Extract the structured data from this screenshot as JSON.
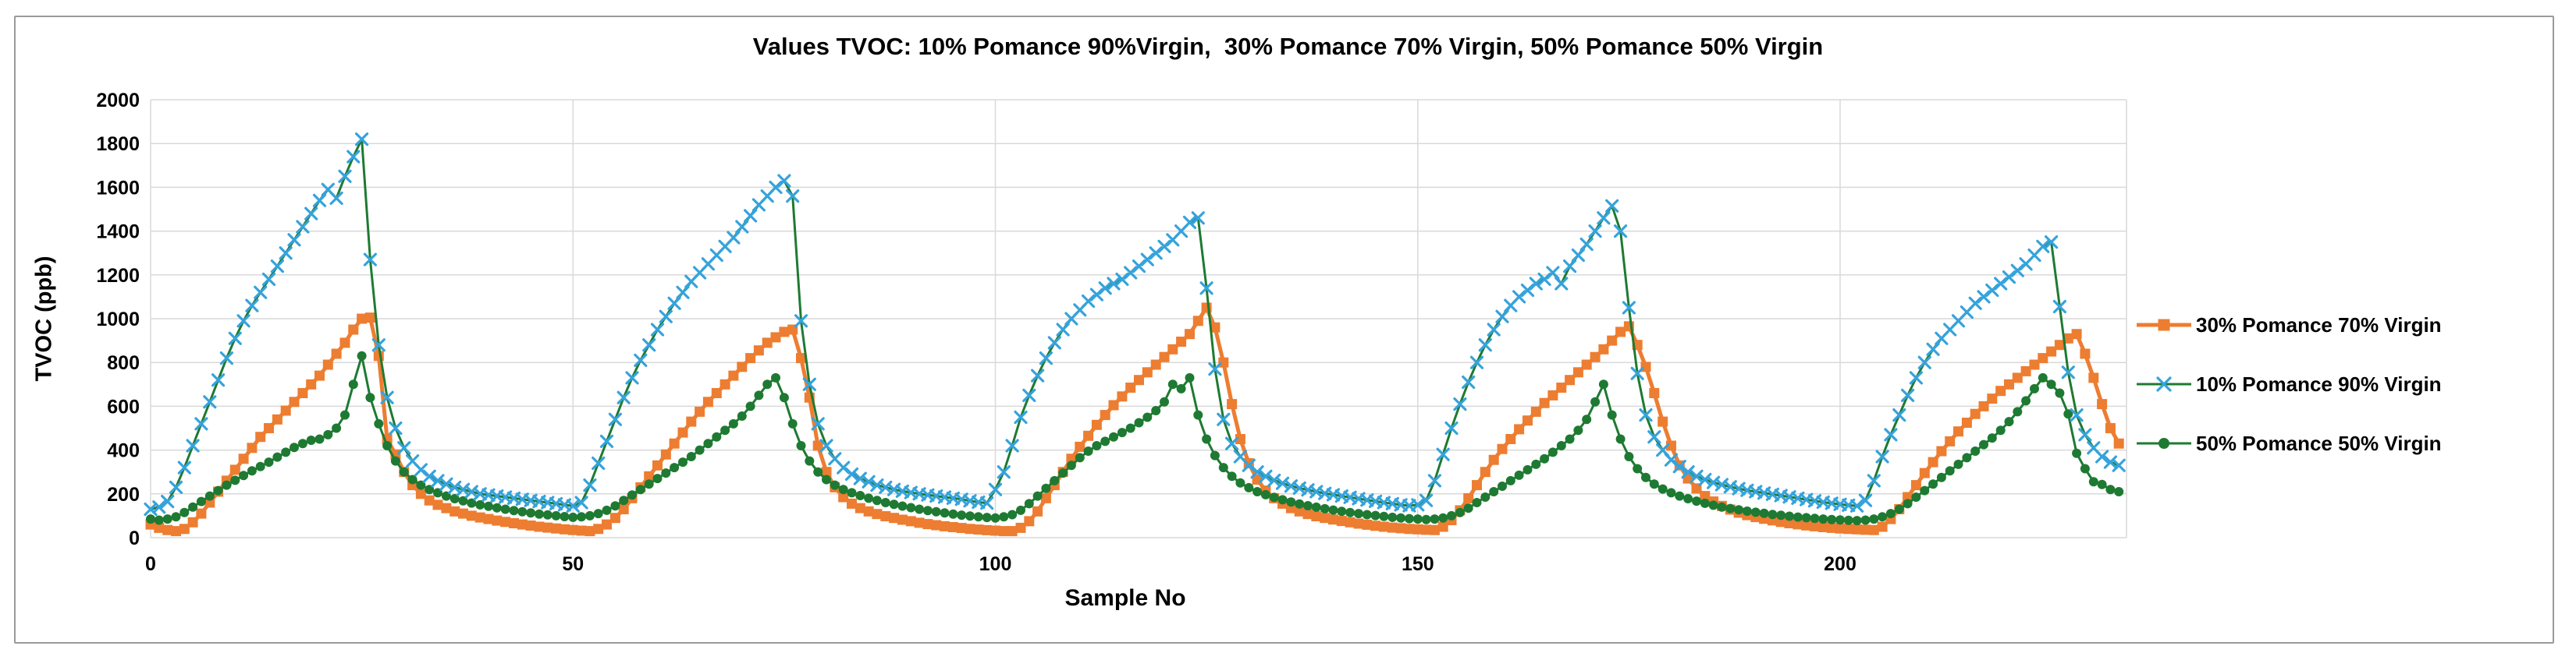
{
  "title": "Values TVOC: 10% Pomance 90%Virgin,  30% Pomance 70% Virgin, 50% Pomance 50% Virgin",
  "y_axis": {
    "label": "TVOC (ppb)"
  },
  "x_axis": {
    "label": "Sample No"
  },
  "colors": {
    "gridline": "#D9D9D9",
    "frame_border": "#9A9A9A",
    "text": "#000000",
    "orange_series": "#ED7D31",
    "dark_green_line": "#1E7A32",
    "light_blue_marker": "#35A3DC"
  },
  "legend": {
    "position": "right"
  },
  "chart_data": {
    "type": "line",
    "title": "Values TVOC: 10% Pomance 90%Virgin,  30% Pomance 70% Virgin, 50% Pomance 50% Virgin",
    "xlabel": "Sample No",
    "ylabel": "TVOC (ppb)",
    "xlim": [
      0,
      234
    ],
    "ylim": [
      0,
      2000
    ],
    "x_ticks": [
      0,
      50,
      100,
      150,
      200
    ],
    "y_ticks": [
      0,
      200,
      400,
      600,
      800,
      1000,
      1200,
      1400,
      1600,
      1800,
      2000
    ],
    "grid": true,
    "legend_position": "right",
    "x_is_sample_index": true,
    "sample_start": 0,
    "sample_step": 1,
    "series": [
      {
        "name": "30% Pomance 70% Virgin",
        "marker": "square",
        "marker_color": "#ED7D31",
        "line_color": "#ED7D31",
        "line_width": 5,
        "marker_size": 13,
        "z": 0,
        "values": [
          60,
          45,
          35,
          30,
          40,
          70,
          110,
          160,
          210,
          260,
          310,
          360,
          410,
          460,
          500,
          540,
          580,
          620,
          660,
          700,
          740,
          790,
          840,
          890,
          950,
          1000,
          1005,
          830,
          450,
          380,
          300,
          240,
          200,
          170,
          150,
          135,
          120,
          110,
          100,
          92,
          85,
          78,
          72,
          66,
          60,
          55,
          50,
          46,
          42,
          38,
          35,
          32,
          30,
          40,
          60,
          90,
          130,
          180,
          230,
          280,
          330,
          380,
          430,
          480,
          530,
          575,
          620,
          660,
          700,
          740,
          780,
          820,
          855,
          890,
          915,
          940,
          950,
          820,
          640,
          420,
          300,
          230,
          185,
          155,
          135,
          120,
          108,
          98,
          90,
          82,
          75,
          68,
          62,
          57,
          52,
          48,
          44,
          40,
          37,
          34,
          32,
          30,
          30,
          45,
          75,
          120,
          180,
          240,
          300,
          360,
          415,
          465,
          515,
          560,
          605,
          645,
          685,
          720,
          755,
          790,
          825,
          860,
          895,
          930,
          990,
          1050,
          960,
          800,
          610,
          450,
          340,
          265,
          215,
          180,
          155,
          135,
          120,
          108,
          98,
          90,
          83,
          76,
          70,
          64,
          59,
          54,
          50,
          46,
          43,
          40,
          38,
          36,
          35,
          50,
          80,
          125,
          180,
          240,
          300,
          355,
          405,
          450,
          495,
          535,
          575,
          615,
          650,
          685,
          720,
          755,
          790,
          825,
          860,
          900,
          940,
          965,
          880,
          780,
          660,
          530,
          420,
          330,
          270,
          225,
          190,
          165,
          145,
          128,
          114,
          103,
          94,
          86,
          79,
          72,
          66,
          61,
          56,
          52,
          48,
          45,
          42,
          40,
          38,
          36,
          35,
          50,
          85,
          130,
          185,
          240,
          295,
          345,
          395,
          440,
          485,
          525,
          565,
          600,
          635,
          670,
          700,
          730,
          760,
          790,
          820,
          850,
          880,
          910,
          930,
          840,
          730,
          610,
          500,
          430
        ]
      },
      {
        "name": "10% Pomance 90% Virgin",
        "marker": "x",
        "marker_color": "#35A3DC",
        "line_color": "#1E7A32",
        "line_width": 3,
        "marker_size": 14,
        "z": 2,
        "values": [
          130,
          140,
          165,
          230,
          320,
          420,
          520,
          620,
          720,
          820,
          910,
          990,
          1060,
          1120,
          1180,
          1240,
          1300,
          1360,
          1420,
          1480,
          1540,
          1590,
          1550,
          1650,
          1740,
          1820,
          1270,
          880,
          640,
          500,
          410,
          350,
          310,
          280,
          260,
          245,
          230,
          220,
          210,
          200,
          195,
          190,
          185,
          180,
          175,
          170,
          165,
          160,
          155,
          150,
          145,
          160,
          240,
          340,
          440,
          540,
          640,
          730,
          810,
          880,
          950,
          1010,
          1070,
          1120,
          1170,
          1210,
          1250,
          1290,
          1330,
          1370,
          1420,
          1470,
          1520,
          1560,
          1600,
          1630,
          1560,
          990,
          700,
          520,
          420,
          360,
          320,
          290,
          270,
          255,
          240,
          230,
          220,
          212,
          206,
          200,
          195,
          190,
          185,
          180,
          175,
          168,
          162,
          158,
          220,
          300,
          420,
          550,
          650,
          740,
          820,
          890,
          950,
          1000,
          1040,
          1080,
          1110,
          1140,
          1160,
          1180,
          1210,
          1240,
          1270,
          1300,
          1330,
          1360,
          1400,
          1440,
          1460,
          1140,
          770,
          540,
          430,
          370,
          330,
          300,
          280,
          262,
          248,
          236,
          226,
          218,
          210,
          202,
          196,
          190,
          184,
          178,
          172,
          166,
          160,
          155,
          150,
          146,
          150,
          170,
          260,
          380,
          500,
          610,
          710,
          800,
          880,
          950,
          1010,
          1060,
          1100,
          1130,
          1160,
          1180,
          1210,
          1160,
          1240,
          1290,
          1340,
          1400,
          1460,
          1515,
          1400,
          1050,
          750,
          560,
          460,
          400,
          355,
          325,
          300,
          280,
          265,
          252,
          242,
          232,
          224,
          216,
          210,
          204,
          198,
          192,
          186,
          180,
          174,
          168,
          162,
          157,
          152,
          148,
          145,
          170,
          260,
          370,
          470,
          560,
          650,
          730,
          800,
          860,
          910,
          950,
          990,
          1030,
          1070,
          1100,
          1130,
          1160,
          1190,
          1220,
          1250,
          1290,
          1330,
          1350,
          1055,
          755,
          560,
          470,
          410,
          370,
          345,
          330
        ]
      },
      {
        "name": "50% Pomance 50% Virgin",
        "marker": "circle",
        "marker_color": "#1E7A32",
        "line_color": "#1E7A32",
        "line_width": 3,
        "marker_size": 12,
        "z": 1,
        "values": [
          85,
          80,
          85,
          95,
          115,
          140,
          165,
          190,
          215,
          240,
          262,
          284,
          305,
          325,
          345,
          368,
          390,
          412,
          430,
          445,
          450,
          470,
          500,
          560,
          700,
          830,
          640,
          520,
          420,
          350,
          300,
          265,
          240,
          220,
          205,
          190,
          178,
          168,
          158,
          150,
          143,
          136,
          130,
          124,
          118,
          113,
          108,
          104,
          100,
          96,
          93,
          95,
          100,
          110,
          125,
          145,
          170,
          195,
          220,
          245,
          270,
          295,
          320,
          345,
          370,
          400,
          430,
          460,
          490,
          520,
          555,
          600,
          650,
          700,
          730,
          640,
          520,
          420,
          350,
          300,
          265,
          240,
          220,
          205,
          192,
          180,
          170,
          160,
          152,
          144,
          137,
          130,
          124,
          118,
          113,
          108,
          103,
          99,
          95,
          92,
          90,
          95,
          105,
          125,
          155,
          190,
          225,
          260,
          295,
          330,
          365,
          395,
          420,
          440,
          460,
          480,
          500,
          525,
          550,
          580,
          620,
          700,
          680,
          730,
          560,
          450,
          375,
          320,
          280,
          250,
          228,
          210,
          196,
          184,
          173,
          163,
          154,
          146,
          139,
          132,
          126,
          120,
          115,
          110,
          105,
          101,
          97,
          93,
          90,
          87,
          85,
          83,
          85,
          90,
          100,
          115,
          135,
          160,
          185,
          210,
          235,
          260,
          285,
          310,
          335,
          360,
          390,
          420,
          450,
          490,
          540,
          620,
          700,
          560,
          450,
          370,
          315,
          275,
          245,
          222,
          205,
          190,
          178,
          167,
          157,
          148,
          140,
          133,
          127,
          121,
          116,
          111,
          106,
          102,
          98,
          94,
          91,
          88,
          85,
          83,
          81,
          79,
          78,
          80,
          85,
          95,
          110,
          130,
          155,
          185,
          215,
          245,
          275,
          305,
          335,
          365,
          395,
          425,
          455,
          490,
          530,
          575,
          625,
          680,
          730,
          700,
          660,
          565,
          385,
          315,
          255,
          243,
          220,
          210
        ]
      }
    ]
  }
}
